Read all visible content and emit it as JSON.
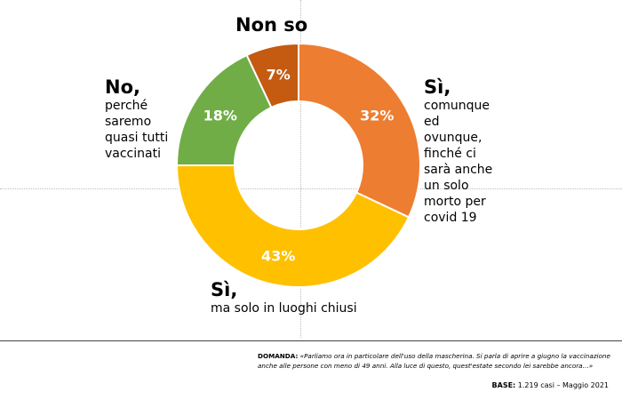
{
  "chart_data": {
    "type": "pie",
    "slices": [
      {
        "label": "Sì, comunque ed ovunque, finché ci sarà anche un solo morto per covid 19",
        "value": 32,
        "value_label": "32%",
        "color": "#ED7D31"
      },
      {
        "label": "Sì, ma solo in luoghi chiusi",
        "value": 43,
        "value_label": "43%",
        "color": "#FFC000"
      },
      {
        "label": "No, perché saremo quasi tutti vaccinati",
        "value": 18,
        "value_label": "18%",
        "color": "#70AD47"
      },
      {
        "label": "Non so",
        "value": 7,
        "value_label": "7%",
        "color": "#C55A11"
      }
    ]
  },
  "categories": {
    "non_so": {
      "head": "Non so"
    },
    "no": {
      "head": "No,",
      "line1": "perché",
      "line2": "saremo",
      "line3": "quasi tutti",
      "line4": "vaccinati"
    },
    "si_ovunque": {
      "head": "Sì,",
      "line1": "comunque",
      "line2": "ed",
      "line3": "ovunque,",
      "line4": "finché ci",
      "line5": "sarà anche",
      "line6": "un solo",
      "line7": "morto per",
      "line8": "covid 19"
    },
    "si_chiusi": {
      "head": "Sì,",
      "line1": "ma solo in luoghi chiusi"
    }
  },
  "footer": {
    "question_label": "DOMANDA:",
    "question_text": "«Parliamo ora in particolare dell'uso della mascherina. Si parla di aprire a giugno la vaccinazione anche alle persone con meno di 49 anni. Alla luce di questo, quest'estate secondo lei sarebbe ancora…»",
    "base_label": "BASE:",
    "base_text": "1.219 casi – Maggio 2021"
  }
}
